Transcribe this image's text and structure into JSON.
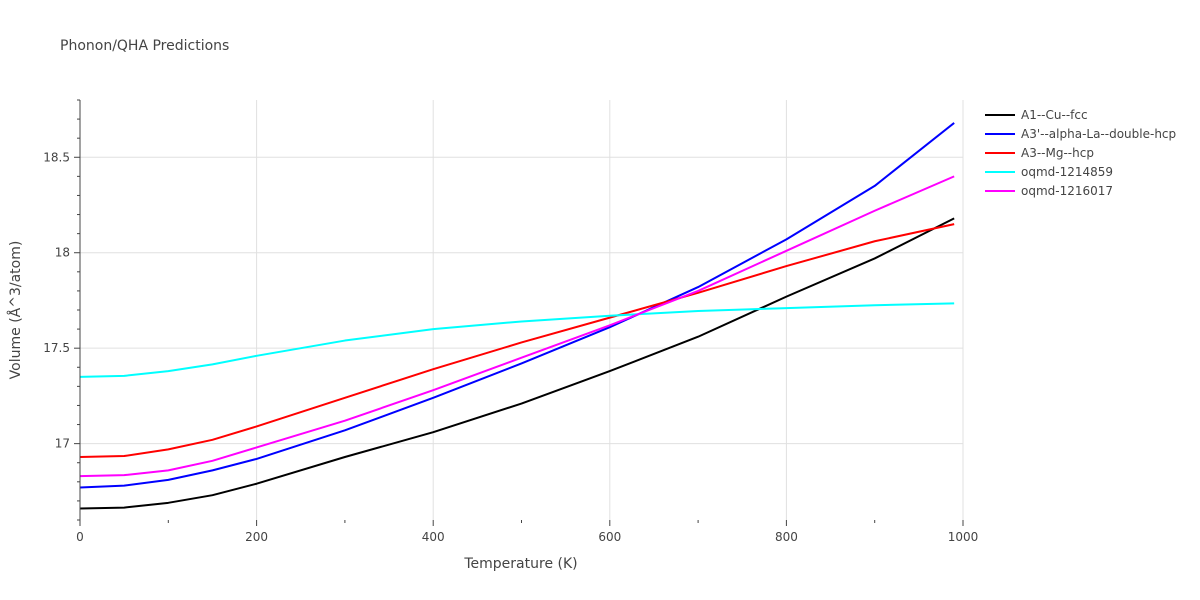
{
  "chart_data": {
    "type": "line",
    "title": "Phonon/QHA Predictions",
    "xlabel": "Temperature (K)",
    "ylabel": "Volume (Å^3/atom)",
    "xlim": [
      0,
      1000
    ],
    "ylim": [
      16.6,
      18.8
    ],
    "x_ticks": [
      0,
      200,
      400,
      600,
      800,
      1000
    ],
    "x_tick_labels": [
      "0",
      "200",
      "400",
      "600",
      "800",
      "1000"
    ],
    "x_minor_ticks": [
      100,
      300,
      500,
      700,
      900
    ],
    "y_ticks": [
      17,
      17.5,
      18,
      18.5
    ],
    "y_tick_labels": [
      "17",
      "17.5",
      "18",
      "18.5"
    ],
    "grid": true,
    "legend_position": "right",
    "series": [
      {
        "name": "A1--Cu--fcc",
        "color": "#000000",
        "points": [
          [
            0,
            16.66
          ],
          [
            50,
            16.665
          ],
          [
            100,
            16.69
          ],
          [
            150,
            16.73
          ],
          [
            200,
            16.79
          ],
          [
            300,
            16.93
          ],
          [
            400,
            17.06
          ],
          [
            500,
            17.21
          ],
          [
            600,
            17.38
          ],
          [
            700,
            17.56
          ],
          [
            800,
            17.77
          ],
          [
            900,
            17.97
          ],
          [
            990,
            18.18
          ]
        ]
      },
      {
        "name": "A3'--alpha-La--double-hcp",
        "color": "#0000ff",
        "points": [
          [
            0,
            16.77
          ],
          [
            50,
            16.78
          ],
          [
            100,
            16.81
          ],
          [
            150,
            16.86
          ],
          [
            200,
            16.92
          ],
          [
            300,
            17.07
          ],
          [
            400,
            17.24
          ],
          [
            500,
            17.42
          ],
          [
            600,
            17.61
          ],
          [
            700,
            17.82
          ],
          [
            800,
            18.07
          ],
          [
            900,
            18.35
          ],
          [
            990,
            18.68
          ]
        ]
      },
      {
        "name": "A3--Mg--hcp",
        "color": "#ff0000",
        "points": [
          [
            0,
            16.93
          ],
          [
            50,
            16.935
          ],
          [
            100,
            16.97
          ],
          [
            150,
            17.02
          ],
          [
            200,
            17.09
          ],
          [
            300,
            17.24
          ],
          [
            400,
            17.39
          ],
          [
            500,
            17.53
          ],
          [
            600,
            17.66
          ],
          [
            700,
            17.79
          ],
          [
            800,
            17.93
          ],
          [
            900,
            18.06
          ],
          [
            990,
            18.15
          ]
        ]
      },
      {
        "name": "oqmd-1214859",
        "color": "#00ffff",
        "points": [
          [
            0,
            17.35
          ],
          [
            50,
            17.355
          ],
          [
            100,
            17.38
          ],
          [
            150,
            17.415
          ],
          [
            200,
            17.46
          ],
          [
            300,
            17.54
          ],
          [
            400,
            17.6
          ],
          [
            500,
            17.64
          ],
          [
            600,
            17.67
          ],
          [
            700,
            17.695
          ],
          [
            800,
            17.71
          ],
          [
            900,
            17.725
          ],
          [
            990,
            17.735
          ]
        ]
      },
      {
        "name": "oqmd-1216017",
        "color": "#ff00ff",
        "points": [
          [
            0,
            16.83
          ],
          [
            50,
            16.835
          ],
          [
            100,
            16.86
          ],
          [
            150,
            16.91
          ],
          [
            200,
            16.98
          ],
          [
            300,
            17.12
          ],
          [
            400,
            17.28
          ],
          [
            500,
            17.45
          ],
          [
            600,
            17.62
          ],
          [
            700,
            17.8
          ],
          [
            800,
            18.01
          ],
          [
            900,
            18.22
          ],
          [
            990,
            18.4
          ]
        ]
      }
    ]
  }
}
